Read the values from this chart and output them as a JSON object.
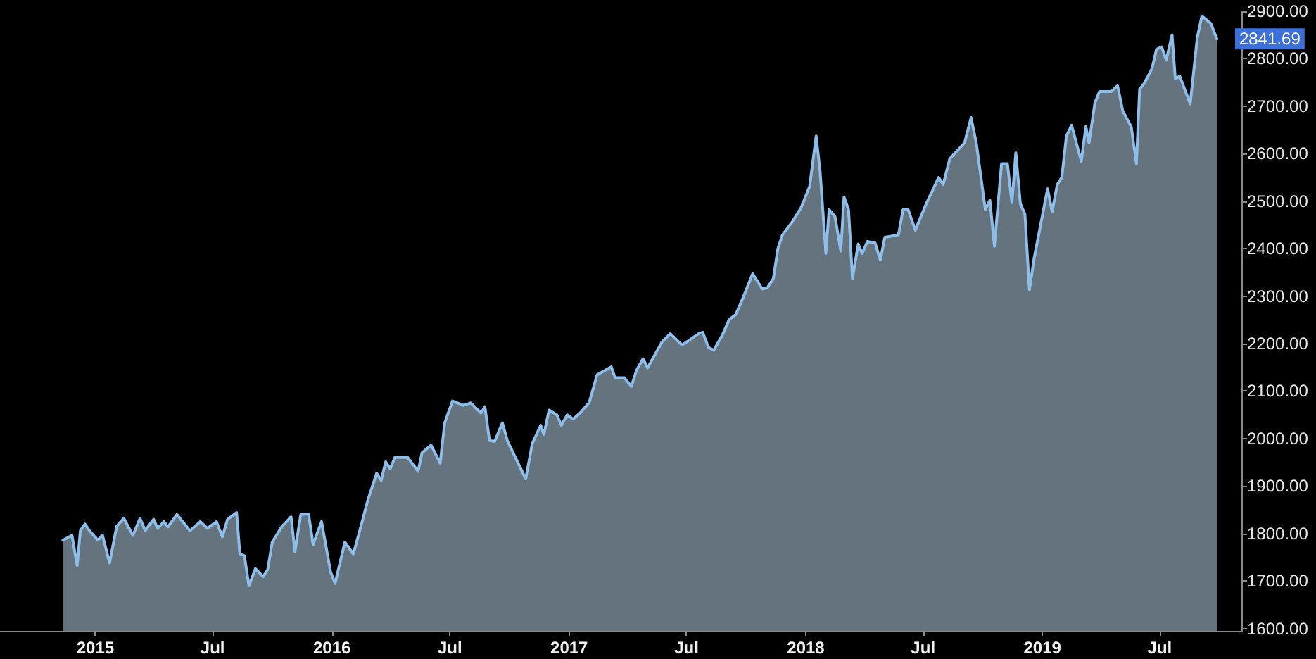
{
  "chart_data": {
    "type": "area",
    "color": "#8dbde9",
    "x": [
      "2014-11-12",
      "2014-11-26",
      "2014-12-04",
      "2014-12-09",
      "2014-12-16",
      "2014-12-23",
      "2015-01-05",
      "2015-01-12",
      "2015-01-23",
      "2015-02-03",
      "2015-02-14",
      "2015-02-28",
      "2015-03-11",
      "2015-03-19",
      "2015-04-01",
      "2015-04-07",
      "2015-04-17",
      "2015-04-23",
      "2015-05-07",
      "2015-05-27",
      "2015-06-12",
      "2015-06-23",
      "2015-07-07",
      "2015-07-16",
      "2015-07-24",
      "2015-08-07",
      "2015-08-12",
      "2015-08-19",
      "2015-08-26",
      "2015-09-05",
      "2015-09-17",
      "2015-09-24",
      "2015-10-01",
      "2015-10-16",
      "2015-10-30",
      "2015-11-05",
      "2015-11-14",
      "2015-11-26",
      "2015-12-03",
      "2015-12-16",
      "2015-12-30",
      "2016-01-06",
      "2016-01-21",
      "2016-02-03",
      "2016-02-11",
      "2016-02-26",
      "2016-03-10",
      "2016-03-17",
      "2016-03-24",
      "2016-03-31",
      "2016-04-07",
      "2016-04-27",
      "2016-05-13",
      "2016-05-19",
      "2016-06-02",
      "2016-06-16",
      "2016-06-23",
      "2016-07-05",
      "2016-07-22",
      "2016-08-02",
      "2016-08-18",
      "2016-08-24",
      "2016-08-31",
      "2016-09-08",
      "2016-09-20",
      "2016-09-28",
      "2016-10-26",
      "2016-11-05",
      "2016-11-18",
      "2016-11-23",
      "2016-12-01",
      "2016-12-13",
      "2016-12-20",
      "2016-12-29",
      "2017-01-07",
      "2017-01-18",
      "2017-02-01",
      "2017-02-13",
      "2017-03-07",
      "2017-03-13",
      "2017-03-27",
      "2017-04-07",
      "2017-04-15",
      "2017-04-25",
      "2017-05-02",
      "2017-05-24",
      "2017-06-06",
      "2017-06-24",
      "2017-07-20",
      "2017-07-26",
      "2017-08-04",
      "2017-08-12",
      "2017-08-25",
      "2017-09-05",
      "2017-09-15",
      "2017-09-27",
      "2017-10-11",
      "2017-10-26",
      "2017-11-03",
      "2017-11-12",
      "2017-11-19",
      "2017-11-26",
      "2017-12-11",
      "2017-12-25",
      "2018-01-07",
      "2018-01-17",
      "2018-01-23",
      "2018-02-01",
      "2018-02-06",
      "2018-02-15",
      "2018-02-24",
      "2018-03-01",
      "2018-03-08",
      "2018-03-14",
      "2018-03-23",
      "2018-03-29",
      "2018-04-06",
      "2018-04-18",
      "2018-04-26",
      "2018-05-03",
      "2018-05-24",
      "2018-05-31",
      "2018-06-08",
      "2018-06-19",
      "2018-07-06",
      "2018-07-25",
      "2018-08-01",
      "2018-08-11",
      "2018-09-03",
      "2018-09-13",
      "2018-09-21",
      "2018-10-05",
      "2018-10-12",
      "2018-10-19",
      "2018-10-30",
      "2018-11-08",
      "2018-11-15",
      "2018-11-21",
      "2018-11-28",
      "2018-12-05",
      "2018-12-12",
      "2018-12-19",
      "2019-01-09",
      "2019-01-16",
      "2019-01-24",
      "2019-01-31",
      "2019-02-07",
      "2019-02-15",
      "2019-03-02",
      "2019-03-09",
      "2019-03-14",
      "2019-03-23",
      "2019-03-30",
      "2019-04-17",
      "2019-04-27",
      "2019-05-05",
      "2019-05-18",
      "2019-05-26",
      "2019-05-31",
      "2019-06-07",
      "2019-06-19",
      "2019-06-26",
      "2019-07-04",
      "2019-07-11",
      "2019-07-20",
      "2019-07-25",
      "2019-08-01",
      "2019-08-17",
      "2019-08-28",
      "2019-09-04",
      "2019-09-18",
      "2019-09-27"
    ],
    "values": [
      1786,
      1796,
      1733,
      1806,
      1820,
      1806,
      1786,
      1797,
      1738,
      1815,
      1832,
      1796,
      1832,
      1806,
      1830,
      1811,
      1825,
      1814,
      1840,
      1806,
      1825,
      1811,
      1825,
      1793,
      1830,
      1844,
      1757,
      1753,
      1690,
      1726,
      1709,
      1724,
      1782,
      1815,
      1835,
      1762,
      1840,
      1841,
      1777,
      1825,
      1719,
      1695,
      1782,
      1757,
      1796,
      1873,
      1927,
      1912,
      1951,
      1936,
      1960,
      1960,
      1931,
      1970,
      1986,
      1948,
      2033,
      2079,
      2070,
      2075,
      2054,
      2067,
      1996,
      1994,
      2033,
      1994,
      1915,
      1989,
      2028,
      2009,
      2060,
      2050,
      2028,
      2050,
      2041,
      2054,
      2076,
      2134,
      2151,
      2128,
      2128,
      2110,
      2144,
      2168,
      2149,
      2203,
      2221,
      2197,
      2221,
      2224,
      2192,
      2186,
      2217,
      2251,
      2261,
      2299,
      2347,
      2315,
      2318,
      2337,
      2400,
      2429,
      2456,
      2487,
      2531,
      2637,
      2564,
      2390,
      2482,
      2468,
      2395,
      2509,
      2482,
      2337,
      2410,
      2390,
      2415,
      2412,
      2376,
      2424,
      2429,
      2482,
      2482,
      2439,
      2495,
      2550,
      2535,
      2589,
      2623,
      2676,
      2623,
      2482,
      2502,
      2405,
      2579,
      2579,
      2497,
      2602,
      2495,
      2473,
      2313,
      2378,
      2526,
      2478,
      2535,
      2550,
      2637,
      2660,
      2584,
      2657,
      2623,
      2707,
      2731,
      2731,
      2743,
      2690,
      2657,
      2579,
      2736,
      2748,
      2779,
      2820,
      2825,
      2797,
      2850,
      2758,
      2763,
      2705,
      2845,
      2890,
      2874,
      2841.69
    ],
    "xlim": [
      "2014-08-07",
      "2019-11-04"
    ],
    "xticks": [
      {
        "value": "2015-01-01",
        "label": "2015"
      },
      {
        "value": "2015-07-01",
        "label": "Jul"
      },
      {
        "value": "2016-01-01",
        "label": "2016"
      },
      {
        "value": "2016-07-01",
        "label": "Jul"
      },
      {
        "value": "2017-01-01",
        "label": "2017"
      },
      {
        "value": "2017-07-01",
        "label": "Jul"
      },
      {
        "value": "2018-01-01",
        "label": "2018"
      },
      {
        "value": "2018-07-01",
        "label": "Jul"
      },
      {
        "value": "2019-01-01",
        "label": "2019"
      },
      {
        "value": "2019-07-01",
        "label": "Jul"
      }
    ],
    "ylim": [
      1595,
      2900
    ],
    "yticks": [
      {
        "value": 1600,
        "label": "1600.00"
      },
      {
        "value": 1700,
        "label": "1700.00"
      },
      {
        "value": 1800,
        "label": "1800.00"
      },
      {
        "value": 1900,
        "label": "1900.00"
      },
      {
        "value": 2000,
        "label": "2000.00"
      },
      {
        "value": 2100,
        "label": "2100.00"
      },
      {
        "value": 2200,
        "label": "2200.00"
      },
      {
        "value": 2300,
        "label": "2300.00"
      },
      {
        "value": 2400,
        "label": "2400.00"
      },
      {
        "value": 2500,
        "label": "2500.00"
      },
      {
        "value": 2600,
        "label": "2600.00"
      },
      {
        "value": 2700,
        "label": "2700.00"
      },
      {
        "value": 2800,
        "label": "2800.00"
      },
      {
        "value": 2900,
        "label": "2900.00"
      }
    ],
    "annotations": [
      {
        "text": "2841.69",
        "x": "2019-09-27",
        "y": 2841.69
      }
    ]
  }
}
